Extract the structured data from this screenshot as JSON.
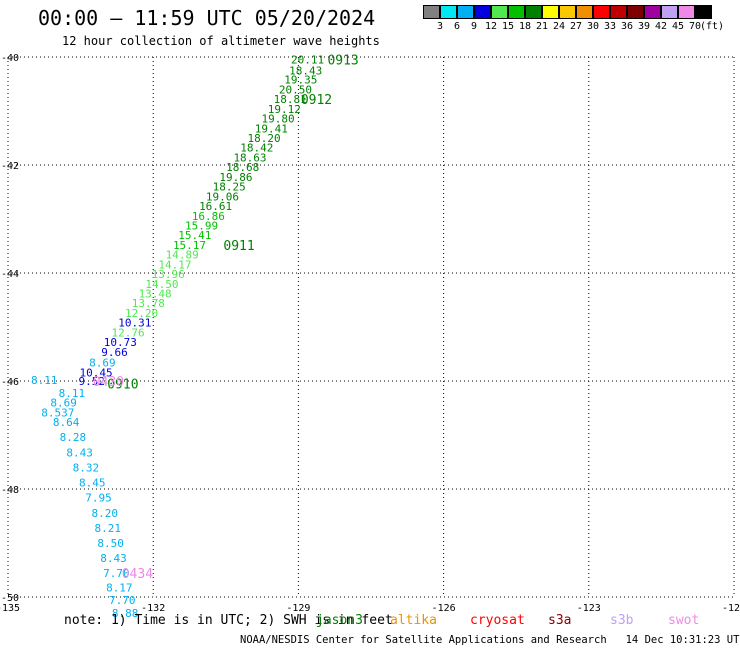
{
  "header": {
    "title": "00:00 — 11:59 UTC 05/20/2024",
    "subtitle": "12 hour collection of altimeter wave heights"
  },
  "colorbar": {
    "colors": [
      "#808080",
      "#00e8f0",
      "#00b0f0",
      "#0000e0",
      "#50e850",
      "#00c000",
      "#008000",
      "#ffff00",
      "#f8c800",
      "#f09000",
      "#ff0000",
      "#c00000",
      "#800000",
      "#a000a0",
      "#c0a0f0",
      "#f088e8",
      "#000000"
    ],
    "labels": [
      "3",
      "6",
      "9",
      "12",
      "15",
      "18",
      "21",
      "24",
      "27",
      "30",
      "33",
      "36",
      "39",
      "42",
      "45",
      "70",
      "(ft)"
    ]
  },
  "footer": {
    "note": "note: 1) Time is in UTC; 2) SWH is in feet",
    "credit": "NOAA/NESDIS Center for Satellite Applications and Research   14 Dec 10:31:23 UTC 2024",
    "satellites": [
      {
        "name": "jason3",
        "color": "#008000"
      },
      {
        "name": "altika",
        "color": "#f09000"
      },
      {
        "name": "cryosat",
        "color": "#ff0000"
      },
      {
        "name": "s3a",
        "color": "#800000"
      },
      {
        "name": "s3b",
        "color": "#c0a0f0"
      },
      {
        "name": "swot",
        "color": "#f088e8"
      }
    ]
  },
  "chart_data": {
    "type": "scatter",
    "title": "00:00 — 11:59 UTC 05/20/2024",
    "subtitle": "12 hour collection of altimeter wave heights",
    "xlim": [
      -135,
      -120
    ],
    "ylim": [
      -50,
      -40
    ],
    "x_ticks": [
      -135,
      -132,
      -129,
      -126,
      -123,
      -120
    ],
    "y_ticks": [
      -40,
      -42,
      -44,
      -46,
      -48,
      -50
    ],
    "grid": true,
    "points": [
      {
        "x": -128.81,
        "y": -40.05,
        "v": "20.11",
        "color": "#008000"
      },
      {
        "x": -128.85,
        "y": -40.25,
        "v": "18.43",
        "color": "#008000"
      },
      {
        "x": -128.95,
        "y": -40.42,
        "v": "19.35",
        "color": "#008000"
      },
      {
        "x": -129.06,
        "y": -40.6,
        "v": "20.50",
        "color": "#008000"
      },
      {
        "x": -129.17,
        "y": -40.78,
        "v": "18.81",
        "color": "#008000"
      },
      {
        "x": -129.29,
        "y": -40.96,
        "v": "19.12",
        "color": "#008000"
      },
      {
        "x": -129.42,
        "y": -41.14,
        "v": "19.80",
        "color": "#008000"
      },
      {
        "x": -129.56,
        "y": -41.32,
        "v": "19.41",
        "color": "#008000"
      },
      {
        "x": -129.71,
        "y": -41.5,
        "v": "18.20",
        "color": "#008000"
      },
      {
        "x": -129.86,
        "y": -41.68,
        "v": "18.42",
        "color": "#008000"
      },
      {
        "x": -130.0,
        "y": -41.86,
        "v": "18.63",
        "color": "#008000"
      },
      {
        "x": -130.15,
        "y": -42.04,
        "v": "18.68",
        "color": "#008000"
      },
      {
        "x": -130.29,
        "y": -42.22,
        "v": "19.86",
        "color": "#008000"
      },
      {
        "x": -130.43,
        "y": -42.4,
        "v": "18.25",
        "color": "#008000"
      },
      {
        "x": -130.57,
        "y": -42.58,
        "v": "19.06",
        "color": "#008000"
      },
      {
        "x": -130.71,
        "y": -42.76,
        "v": "16.61",
        "color": "#008000"
      },
      {
        "x": -130.86,
        "y": -42.94,
        "v": "16.86",
        "color": "#00c000"
      },
      {
        "x": -131.0,
        "y": -43.12,
        "v": "15.99",
        "color": "#00c000"
      },
      {
        "x": -131.14,
        "y": -43.3,
        "v": "15.41",
        "color": "#00c000"
      },
      {
        "x": -131.25,
        "y": -43.48,
        "v": "15.17",
        "color": "#00c000"
      },
      {
        "x": -131.4,
        "y": -43.66,
        "v": "14.89",
        "color": "#50e850"
      },
      {
        "x": -131.55,
        "y": -43.84,
        "v": "14.17",
        "color": "#50e850"
      },
      {
        "x": -131.69,
        "y": -44.02,
        "v": "13.96",
        "color": "#50e850"
      },
      {
        "x": -131.82,
        "y": -44.2,
        "v": "14.50",
        "color": "#50e850"
      },
      {
        "x": -131.96,
        "y": -44.38,
        "v": "13.48",
        "color": "#50e850"
      },
      {
        "x": -132.1,
        "y": -44.56,
        "v": "13.78",
        "color": "#50e850"
      },
      {
        "x": -132.24,
        "y": -44.74,
        "v": "12.20",
        "color": "#50e850"
      },
      {
        "x": -132.38,
        "y": -44.92,
        "v": "10.31",
        "color": "#0000e0"
      },
      {
        "x": -132.52,
        "y": -45.1,
        "v": "12.76",
        "color": "#50e850"
      },
      {
        "x": -132.68,
        "y": -45.28,
        "v": "10.73",
        "color": "#0000e0"
      },
      {
        "x": -132.8,
        "y": -45.46,
        "v": "9.66",
        "color": "#0000e0"
      },
      {
        "x": -133.05,
        "y": -45.66,
        "v": "8.69",
        "color": "#00b0f0"
      },
      {
        "x": -133.18,
        "y": -45.84,
        "v": "10.45",
        "color": "#0000e0"
      },
      {
        "x": -133.27,
        "y": -46.0,
        "v": "9.52",
        "color": "#0000e0"
      },
      {
        "x": -134.25,
        "y": -45.98,
        "v": "8.11",
        "color": "#00b0f0"
      },
      {
        "x": -133.68,
        "y": -46.22,
        "v": "8.11",
        "color": "#00b0f0"
      },
      {
        "x": -133.85,
        "y": -46.4,
        "v": "8.69",
        "color": "#00b0f0"
      },
      {
        "x": -133.97,
        "y": -46.58,
        "v": "8.537",
        "color": "#00b0f0"
      },
      {
        "x": -133.8,
        "y": -46.76,
        "v": "8.64",
        "color": "#00b0f0"
      },
      {
        "x": -133.66,
        "y": -47.04,
        "v": "8.28",
        "color": "#00b0f0"
      },
      {
        "x": -133.52,
        "y": -47.32,
        "v": "8.43",
        "color": "#00b0f0"
      },
      {
        "x": -133.39,
        "y": -47.6,
        "v": "8.32",
        "color": "#00b0f0"
      },
      {
        "x": -133.26,
        "y": -47.88,
        "v": "8.45",
        "color": "#00b0f0"
      },
      {
        "x": -133.13,
        "y": -48.16,
        "v": "7.95",
        "color": "#00b0f0"
      },
      {
        "x": -133.0,
        "y": -48.44,
        "v": "8.20",
        "color": "#00b0f0"
      },
      {
        "x": -132.94,
        "y": -48.72,
        "v": "8.21",
        "color": "#00b0f0"
      },
      {
        "x": -132.88,
        "y": -49.0,
        "v": "8.50",
        "color": "#00b0f0"
      },
      {
        "x": -132.82,
        "y": -49.28,
        "v": "8.43",
        "color": "#00b0f0"
      },
      {
        "x": -132.76,
        "y": -49.56,
        "v": "7.70",
        "color": "#00b0f0"
      },
      {
        "x": -132.7,
        "y": -49.82,
        "v": "8.17",
        "color": "#00b0f0"
      },
      {
        "x": -132.64,
        "y": -50.06,
        "v": "7.70",
        "color": "#00b0f0"
      },
      {
        "x": -132.58,
        "y": -50.3,
        "v": "8.88",
        "color": "#00b0f0"
      }
    ],
    "time_labels": [
      {
        "x": -128.4,
        "y": -40.05,
        "text": "0913",
        "color": "#008000"
      },
      {
        "x": -128.95,
        "y": -40.78,
        "text": "0912",
        "color": "#008000"
      },
      {
        "x": -130.55,
        "y": -43.48,
        "text": "0911",
        "color": "#008000"
      },
      {
        "x": -132.95,
        "y": -46.05,
        "text": "0910",
        "color": "#008000"
      },
      {
        "x": -133.25,
        "y": -46.0,
        "text": "0430",
        "color": "#f088e8"
      },
      {
        "x": -132.65,
        "y": -49.56,
        "text": "0434",
        "color": "#f088e8"
      }
    ]
  }
}
